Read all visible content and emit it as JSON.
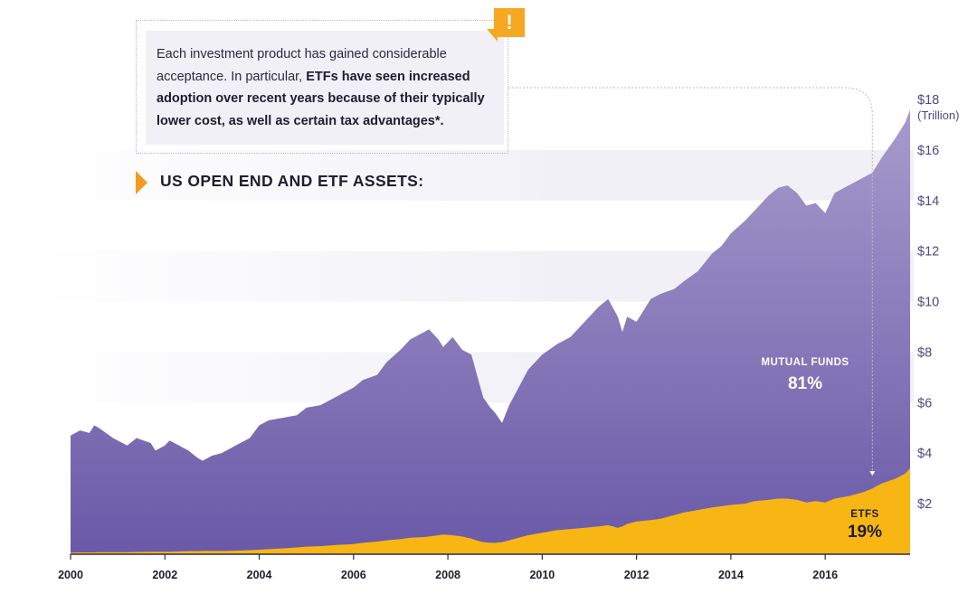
{
  "callout": {
    "text_plain": "Each investment product has gained considerable acceptance. In particular, ",
    "text_bold": "ETFs have seen increased adoption over recent years because of their typically lower cost, as well as certain tax advantages*.",
    "badge": "!"
  },
  "annotations": {
    "mutual_funds_label": "MUTUAL FUNDS",
    "mutual_funds_pct": "81%",
    "etfs_label": "ETFS",
    "etfs_pct": "19%"
  },
  "colors": {
    "mutual_funds_top": "#a79bcc",
    "mutual_funds_bottom": "#6a59a8",
    "etfs": "#f7b614",
    "accent_orange": "#f49a1e",
    "tick_text": "#4d4a82"
  },
  "chart_data": {
    "type": "area",
    "title": "US OPEN END AND ETF ASSETS:",
    "y_unit": "(Trillion)",
    "xlim": [
      2000,
      2017.8
    ],
    "ylim": [
      0,
      18
    ],
    "x_ticks": [
      2000,
      2002,
      2004,
      2006,
      2008,
      2010,
      2012,
      2014,
      2016
    ],
    "x_tick_labels": [
      "2000",
      "2002",
      "2004",
      "2006",
      "2008",
      "2010",
      "2012",
      "2014",
      "2016"
    ],
    "y_ticks": [
      2,
      4,
      6,
      8,
      10,
      12,
      14,
      16,
      18
    ],
    "y_tick_labels": [
      "$2",
      "$4",
      "$6",
      "$8",
      "$10",
      "$12",
      "$14",
      "$16",
      "$18"
    ],
    "x": [
      2000.0,
      2000.2,
      2000.4,
      2000.5,
      2000.6,
      2000.9,
      2001.0,
      2001.2,
      2001.4,
      2001.7,
      2001.8,
      2002.0,
      2002.1,
      2002.3,
      2002.5,
      2002.7,
      2002.8,
      2003.0,
      2003.2,
      2003.5,
      2003.8,
      2004.0,
      2004.2,
      2004.5,
      2004.8,
      2005.0,
      2005.3,
      2005.6,
      2006.0,
      2006.2,
      2006.5,
      2006.7,
      2007.0,
      2007.2,
      2007.5,
      2007.6,
      2007.8,
      2007.9,
      2008.1,
      2008.3,
      2008.5,
      2008.6,
      2008.75,
      2008.9,
      2009.0,
      2009.15,
      2009.3,
      2009.5,
      2009.7,
      2010.0,
      2010.3,
      2010.6,
      2010.9,
      2011.2,
      2011.4,
      2011.6,
      2011.7,
      2011.8,
      2012.0,
      2012.3,
      2012.5,
      2012.8,
      2013.0,
      2013.3,
      2013.6,
      2013.8,
      2014.0,
      2014.3,
      2014.5,
      2014.8,
      2015.0,
      2015.2,
      2015.4,
      2015.6,
      2015.8,
      2016.0,
      2016.2,
      2016.5,
      2016.8,
      2017.0,
      2017.2,
      2017.5,
      2017.7,
      2017.8
    ],
    "series": [
      {
        "name": "MUTUAL FUNDS",
        "values": [
          4.7,
          4.9,
          4.8,
          5.1,
          5.0,
          4.6,
          4.5,
          4.3,
          4.6,
          4.4,
          4.1,
          4.3,
          4.5,
          4.3,
          4.1,
          3.8,
          3.7,
          3.9,
          4.0,
          4.3,
          4.6,
          5.1,
          5.3,
          5.4,
          5.5,
          5.8,
          5.9,
          6.2,
          6.6,
          6.9,
          7.1,
          7.6,
          8.1,
          8.5,
          8.8,
          8.9,
          8.5,
          8.2,
          8.6,
          8.1,
          7.9,
          7.2,
          6.2,
          5.8,
          5.6,
          5.2,
          5.9,
          6.6,
          7.3,
          7.9,
          8.3,
          8.6,
          9.2,
          9.8,
          10.1,
          9.4,
          8.8,
          9.4,
          9.2,
          10.1,
          10.3,
          10.5,
          10.8,
          11.2,
          11.9,
          12.2,
          12.7,
          13.2,
          13.6,
          14.2,
          14.5,
          14.6,
          14.3,
          13.8,
          13.9,
          13.5,
          14.3,
          14.6,
          14.9,
          15.1,
          15.7,
          16.5,
          17.1,
          17.6
        ]
      },
      {
        "name": "ETFS",
        "values": [
          0.06,
          0.07,
          0.07,
          0.07,
          0.08,
          0.08,
          0.08,
          0.08,
          0.09,
          0.1,
          0.1,
          0.1,
          0.1,
          0.11,
          0.12,
          0.12,
          0.13,
          0.13,
          0.13,
          0.14,
          0.16,
          0.18,
          0.2,
          0.23,
          0.27,
          0.3,
          0.32,
          0.36,
          0.4,
          0.45,
          0.5,
          0.55,
          0.6,
          0.65,
          0.68,
          0.7,
          0.75,
          0.78,
          0.75,
          0.7,
          0.62,
          0.55,
          0.48,
          0.45,
          0.45,
          0.48,
          0.55,
          0.65,
          0.75,
          0.85,
          0.95,
          1.0,
          1.05,
          1.1,
          1.15,
          1.05,
          1.1,
          1.2,
          1.3,
          1.35,
          1.4,
          1.55,
          1.65,
          1.75,
          1.85,
          1.9,
          1.95,
          2.0,
          2.1,
          2.15,
          2.2,
          2.2,
          2.15,
          2.05,
          2.1,
          2.05,
          2.2,
          2.3,
          2.45,
          2.6,
          2.8,
          3.0,
          3.2,
          3.4
        ]
      }
    ],
    "grid": false,
    "legend": "none"
  }
}
